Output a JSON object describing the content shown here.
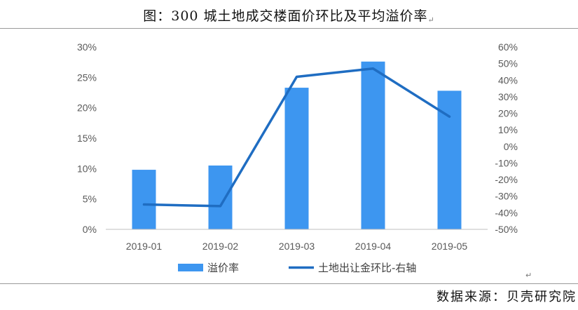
{
  "title": "图：300 城土地成交楼面价环比及平均溢价率",
  "return_mark": "↵",
  "source": "数据来源：贝壳研究院",
  "colors": {
    "bar": "#3d96f0",
    "line": "#1f6dc2",
    "axis": "#bfbfbf",
    "tick_text": "#595959"
  },
  "chart_data": {
    "type": "bar",
    "categories": [
      "2019-01",
      "2019-02",
      "2019-03",
      "2019-04",
      "2019-05"
    ],
    "series": [
      {
        "name": "溢价率",
        "type": "bar",
        "axis": "left",
        "values": [
          9.8,
          10.5,
          23.3,
          27.6,
          22.8
        ]
      },
      {
        "name": "土地出让金环比-右轴",
        "type": "line",
        "axis": "right",
        "values": [
          -35,
          -36,
          42,
          47,
          18
        ]
      }
    ],
    "y_left": {
      "min": 0,
      "max": 30,
      "ticks": [
        {
          "value": 0,
          "label": "0%"
        },
        {
          "value": 5,
          "label": "5%"
        },
        {
          "value": 10,
          "label": "10%"
        },
        {
          "value": 15,
          "label": "15%"
        },
        {
          "value": 20,
          "label": "20%"
        },
        {
          "value": 25,
          "label": "25%"
        },
        {
          "value": 30,
          "label": "30%"
        }
      ]
    },
    "y_right": {
      "min": -50,
      "max": 60,
      "ticks": [
        {
          "value": -50,
          "label": "-50%"
        },
        {
          "value": -40,
          "label": "-40%"
        },
        {
          "value": -30,
          "label": "-30%"
        },
        {
          "value": -20,
          "label": "-20%"
        },
        {
          "value": -10,
          "label": "-10%"
        },
        {
          "value": 0,
          "label": "0%"
        },
        {
          "value": 10,
          "label": "10%"
        },
        {
          "value": 20,
          "label": "20%"
        },
        {
          "value": 30,
          "label": "30%"
        },
        {
          "value": 40,
          "label": "40%"
        },
        {
          "value": 50,
          "label": "50%"
        },
        {
          "value": 60,
          "label": "60%"
        }
      ]
    },
    "grid": false,
    "legend_position": "bottom"
  }
}
